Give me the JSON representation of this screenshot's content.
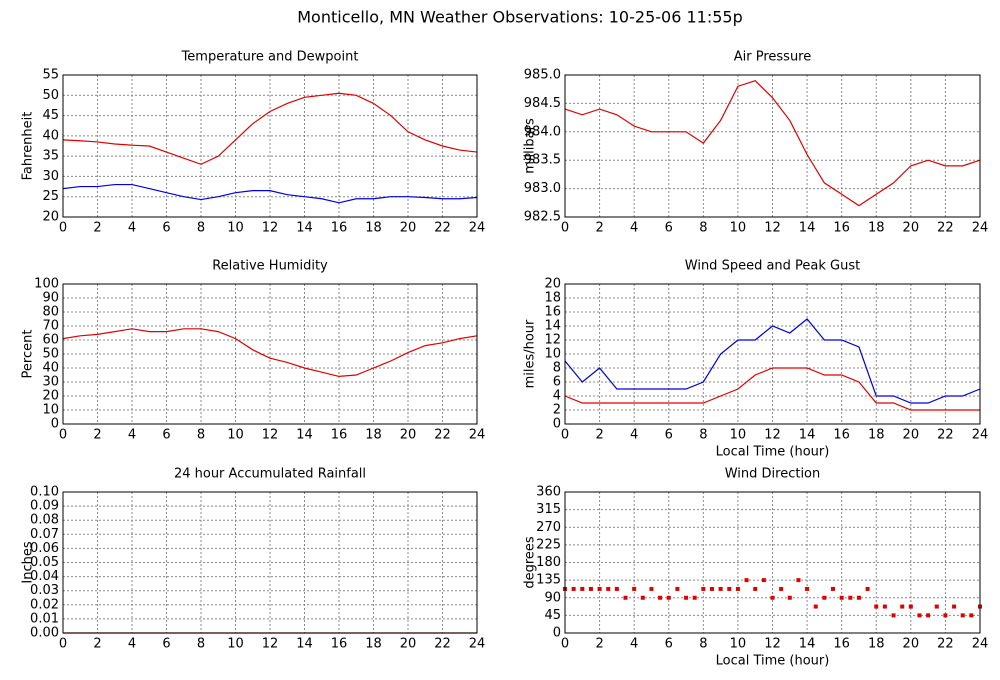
{
  "title": "Monticello, MN Weather Observations: 10-25-06 11:55p",
  "chart_data": [
    {
      "type": "line",
      "title": "Temperature and Dewpoint",
      "y_label": "Fahrenheit",
      "x": [
        0,
        1,
        2,
        3,
        4,
        5,
        6,
        7,
        8,
        9,
        10,
        11,
        12,
        13,
        14,
        15,
        16,
        17,
        18,
        19,
        20,
        21,
        22,
        23,
        24
      ],
      "series": [
        {
          "color": "#e00000",
          "values": [
            39,
            38.8,
            38.5,
            38,
            37.7,
            37.5,
            36,
            34.5,
            33,
            35,
            39,
            43,
            46,
            48,
            49.5,
            50,
            50.5,
            50,
            48,
            45,
            41,
            39,
            37.5,
            36.5,
            36
          ]
        },
        {
          "color": "#0000e0",
          "values": [
            27,
            27.5,
            27.5,
            28,
            28,
            27,
            26,
            25,
            24.3,
            25,
            26,
            26.5,
            26.5,
            25.5,
            25,
            24.5,
            23.5,
            24.5,
            24.5,
            25,
            25,
            24.8,
            24.5,
            24.5,
            24.8
          ]
        }
      ],
      "xlim": [
        0,
        24
      ],
      "ylim": [
        20,
        55
      ],
      "xticks": [
        0,
        2,
        4,
        6,
        8,
        10,
        12,
        14,
        16,
        18,
        20,
        22,
        24
      ],
      "yticks": [
        20,
        25,
        30,
        35,
        40,
        45,
        50,
        55
      ],
      "grid": true
    },
    {
      "type": "line",
      "title": "Air Pressure",
      "y_label": "millibars",
      "x": [
        0,
        1,
        2,
        3,
        4,
        5,
        6,
        7,
        8,
        9,
        10,
        11,
        12,
        13,
        14,
        15,
        16,
        17,
        18,
        19,
        20,
        21,
        22,
        23,
        24
      ],
      "series": [
        {
          "color": "#e00000",
          "values": [
            984.4,
            984.3,
            984.4,
            984.3,
            984.1,
            984.0,
            984.0,
            984.0,
            983.8,
            984.2,
            984.8,
            984.9,
            984.6,
            984.2,
            983.6,
            983.1,
            982.9,
            982.7,
            982.9,
            983.1,
            983.4,
            983.5,
            983.4,
            983.4,
            983.5
          ]
        }
      ],
      "xlim": [
        0,
        24
      ],
      "ylim": [
        982.5,
        985
      ],
      "xticks": [
        0,
        2,
        4,
        6,
        8,
        10,
        12,
        14,
        16,
        18,
        20,
        22,
        24
      ],
      "yticks": [
        982.5,
        {
          "value": 983,
          "label": "983.0"
        },
        983.5,
        {
          "value": 984,
          "label": "984.0"
        },
        984.5,
        {
          "value": 985,
          "label": "985.0"
        }
      ],
      "grid": true
    },
    {
      "type": "line",
      "title": "Relative Humidity",
      "y_label": "Percent",
      "x": [
        0,
        1,
        2,
        3,
        4,
        5,
        6,
        7,
        8,
        9,
        10,
        11,
        12,
        13,
        14,
        15,
        16,
        17,
        18,
        19,
        20,
        21,
        22,
        23,
        24
      ],
      "series": [
        {
          "color": "#e00000",
          "values": [
            61,
            63,
            64,
            66,
            68,
            66,
            66,
            68,
            68,
            66,
            61,
            53,
            47,
            44,
            40,
            37,
            34,
            35,
            40,
            45,
            51,
            56,
            58,
            61,
            63
          ]
        }
      ],
      "xlim": [
        0,
        24
      ],
      "ylim": [
        0,
        100
      ],
      "xticks": [
        0,
        2,
        4,
        6,
        8,
        10,
        12,
        14,
        16,
        18,
        20,
        22,
        24
      ],
      "yticks": [
        0,
        10,
        20,
        30,
        40,
        50,
        60,
        70,
        80,
        90,
        100
      ],
      "grid": true
    },
    {
      "type": "line",
      "title": "Wind Speed and Peak Gust",
      "y_label": "miles/hour",
      "x_label": "Local Time (hour)",
      "x": [
        0,
        1,
        2,
        3,
        4,
        5,
        6,
        7,
        8,
        9,
        10,
        11,
        12,
        13,
        14,
        15,
        16,
        17,
        18,
        19,
        20,
        21,
        22,
        23,
        24
      ],
      "series": [
        {
          "color": "#0000e0",
          "values": [
            9,
            6,
            8,
            5,
            5,
            5,
            5,
            5,
            6,
            10,
            12,
            12,
            14,
            13,
            15,
            12,
            12,
            11,
            4,
            4,
            3,
            3,
            4,
            4,
            5
          ]
        },
        {
          "color": "#e00000",
          "values": [
            4,
            3,
            3,
            3,
            3,
            3,
            3,
            3,
            3,
            4,
            5,
            7,
            8,
            8,
            8,
            7,
            7,
            6,
            3,
            3,
            2,
            2,
            2,
            2,
            2
          ]
        }
      ],
      "xlim": [
        0,
        24
      ],
      "ylim": [
        0,
        20
      ],
      "xticks": [
        0,
        2,
        4,
        6,
        8,
        10,
        12,
        14,
        16,
        18,
        20,
        22,
        24
      ],
      "yticks": [
        0,
        2,
        4,
        6,
        8,
        10,
        12,
        14,
        16,
        18,
        20
      ],
      "grid": true
    },
    {
      "type": "line",
      "title": "24 hour Accumulated Rainfall",
      "y_label": "Inches",
      "x": [
        0,
        1,
        2,
        3,
        4,
        5,
        6,
        7,
        8,
        9,
        10,
        11,
        12,
        13,
        14,
        15,
        16,
        17,
        18,
        19,
        20,
        21,
        22,
        23,
        24
      ],
      "series": [
        {
          "color": "#e00000",
          "values": [
            0,
            0,
            0,
            0,
            0,
            0,
            0,
            0,
            0,
            0,
            0,
            0,
            0,
            0,
            0,
            0,
            0,
            0,
            0,
            0,
            0,
            0,
            0,
            0,
            0
          ]
        }
      ],
      "xlim": [
        0,
        24
      ],
      "ylim": [
        0,
        0.1
      ],
      "xticks": [
        0,
        2,
        4,
        6,
        8,
        10,
        12,
        14,
        16,
        18,
        20,
        22,
        24
      ],
      "yticks": [
        {
          "value": 0,
          "label": "0.00"
        },
        0.01,
        0.02,
        0.03,
        0.04,
        0.05,
        0.06,
        0.07,
        0.08,
        0.09,
        {
          "value": 0.1,
          "label": "0.10"
        }
      ],
      "grid": true
    },
    {
      "type": "scatter",
      "title": "Wind Direction",
      "y_label": "degrees",
      "x_label": "Local Time (hour)",
      "x": [
        0,
        0.5,
        1,
        1.5,
        2,
        2.5,
        3,
        3.5,
        4,
        4.5,
        5,
        5.5,
        6,
        6.5,
        7,
        7.5,
        8,
        8.5,
        9,
        9.5,
        10,
        10.5,
        11,
        11.5,
        12,
        12.5,
        13,
        13.5,
        14,
        14.5,
        15,
        15.5,
        16,
        16.5,
        17,
        17.5,
        18,
        18.5,
        19,
        19.5,
        20,
        20.5,
        21,
        21.5,
        22,
        22.5,
        23,
        23.5,
        24
      ],
      "series": [
        {
          "color": "#e00000",
          "values": [
            112.5,
            112.5,
            112.5,
            112.5,
            112.5,
            112.5,
            112.5,
            90,
            112.5,
            90,
            112.5,
            90,
            90,
            112.5,
            90,
            90,
            112.5,
            112.5,
            112.5,
            112.5,
            112.5,
            135,
            112.5,
            135,
            90,
            112.5,
            90,
            135,
            112.5,
            67.5,
            90,
            112.5,
            90,
            90,
            90,
            112.5,
            67.5,
            67.5,
            45,
            67.5,
            67.5,
            45,
            45,
            67.5,
            45,
            67.5,
            45,
            45,
            67.5
          ]
        }
      ],
      "xlim": [
        0,
        24
      ],
      "ylim": [
        0,
        360
      ],
      "xticks": [
        0,
        2,
        4,
        6,
        8,
        10,
        12,
        14,
        16,
        18,
        20,
        22,
        24
      ],
      "yticks": [
        0,
        45,
        90,
        135,
        180,
        225,
        270,
        315,
        360
      ],
      "grid": true
    }
  ]
}
